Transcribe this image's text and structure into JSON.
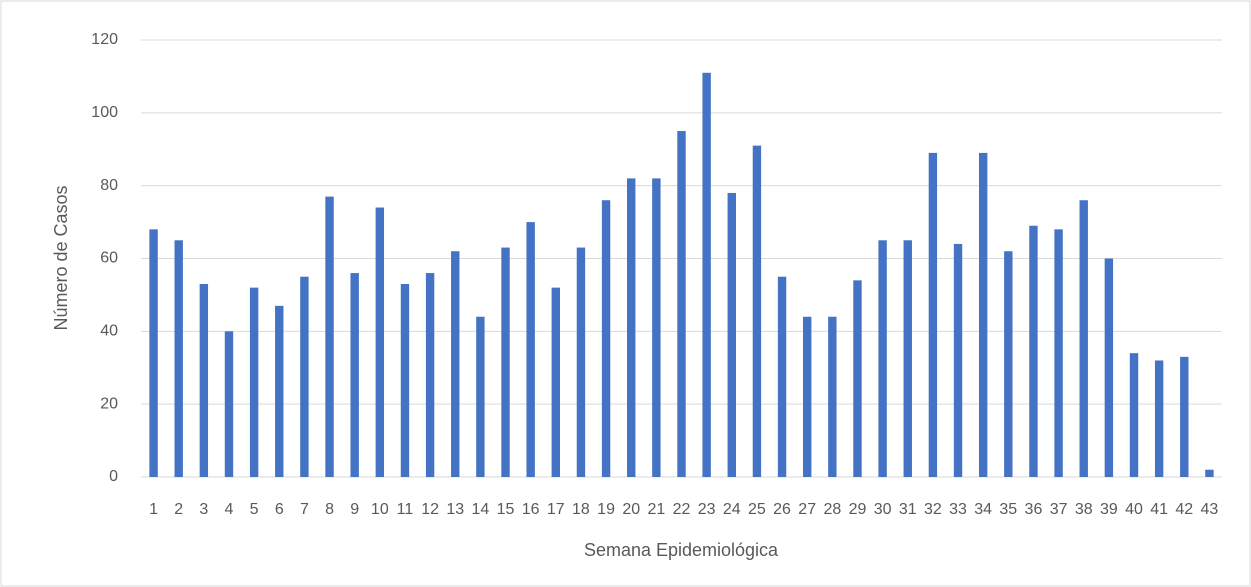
{
  "chart_data": {
    "type": "bar",
    "x_label": "Semana Epidemiológica",
    "y_label": "Número de Casos",
    "categories": [
      "1",
      "2",
      "3",
      "4",
      "5",
      "6",
      "7",
      "8",
      "9",
      "10",
      "11",
      "12",
      "13",
      "14",
      "15",
      "16",
      "17",
      "18",
      "19",
      "20",
      "21",
      "22",
      "23",
      "24",
      "25",
      "26",
      "27",
      "28",
      "29",
      "30",
      "31",
      "32",
      "33",
      "34",
      "35",
      "36",
      "37",
      "38",
      "39",
      "40",
      "41",
      "42",
      "43"
    ],
    "values": [
      68,
      65,
      53,
      40,
      52,
      47,
      55,
      77,
      56,
      74,
      53,
      56,
      62,
      44,
      63,
      70,
      52,
      63,
      76,
      82,
      82,
      95,
      111,
      78,
      91,
      55,
      44,
      44,
      54,
      65,
      65,
      89,
      64,
      89,
      62,
      69,
      68,
      76,
      60,
      34,
      32,
      33,
      2
    ],
    "color": "#4472c4",
    "ylim": [
      0,
      120
    ],
    "yticks": [
      0,
      20,
      40,
      60,
      80,
      100,
      120
    ],
    "grid": true
  }
}
